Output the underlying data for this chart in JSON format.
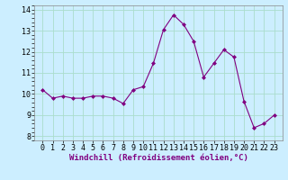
{
  "x": [
    0,
    1,
    2,
    3,
    4,
    5,
    6,
    7,
    8,
    9,
    10,
    11,
    12,
    13,
    14,
    15,
    16,
    17,
    18,
    19,
    20,
    21,
    22,
    23
  ],
  "y": [
    10.2,
    9.8,
    9.9,
    9.8,
    9.8,
    9.9,
    9.9,
    9.8,
    9.55,
    10.2,
    10.35,
    11.45,
    13.05,
    13.75,
    13.3,
    12.5,
    10.8,
    11.45,
    12.1,
    11.75,
    9.65,
    8.4,
    8.6,
    9.0
  ],
  "line_color": "#800080",
  "marker": "D",
  "marker_size": 2.0,
  "linewidth": 0.8,
  "xlabel": "Windchill (Refroidissement éolien,°C)",
  "xlabel_fontsize": 6.5,
  "xtick_labels": [
    "0",
    "1",
    "2",
    "3",
    "4",
    "5",
    "6",
    "7",
    "8",
    "9",
    "10",
    "11",
    "12",
    "13",
    "14",
    "15",
    "16",
    "17",
    "18",
    "19",
    "20",
    "21",
    "22",
    "23"
  ],
  "ylim": [
    7.8,
    14.2
  ],
  "yticks": [
    8,
    9,
    10,
    11,
    12,
    13,
    14
  ],
  "background_color": "#cceeff",
  "grid_color": "#aaddcc",
  "tick_fontsize": 6.0
}
